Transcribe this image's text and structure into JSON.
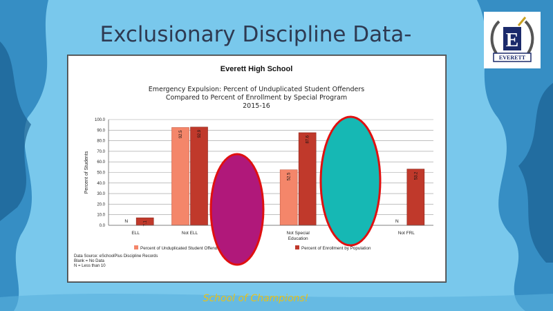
{
  "slide": {
    "title": "Exclusionary Discipline Data-",
    "footer": "School of Champions!",
    "logo_text": "EVERETT",
    "logo_letter": "E"
  },
  "colors": {
    "background": "#79c8ec",
    "wave_dark": "#1f6fa5",
    "series1": "#f4866a",
    "series2": "#c0392b",
    "oval1_fill": "#b0187a",
    "oval2_fill": "#16b8b4",
    "oval_stroke": "#e01010",
    "footer": "#e8c21a"
  },
  "chart_data": {
    "type": "bar",
    "school": "Everett High School",
    "title": [
      "Emergency Expulsion: Percent of Unduplicated Student Offenders",
      "Compared to Percent of Enrollment by Special Program",
      "2015-16"
    ],
    "ylabel": "Percent of Students",
    "ylim": [
      0,
      100
    ],
    "yticks": [
      "0.0",
      "10.0",
      "20.0",
      "30.0",
      "40.0",
      "50.0",
      "60.0",
      "70.0",
      "80.0",
      "90.0",
      "100.0"
    ],
    "categories": [
      "ELL",
      "Not ELL",
      "",
      "Not Special\nEducation",
      "",
      "Not FRL"
    ],
    "series": [
      {
        "name": "Percent of Unduplicated Student Offenders by Population",
        "values": [
          null,
          92.5,
          null,
          52.5,
          null,
          null
        ],
        "labels": [
          "N",
          "92.5",
          "",
          "52.5",
          "",
          "N"
        ]
      },
      {
        "name": "Percent of Enrollment by Population",
        "values": [
          7.1,
          92.9,
          null,
          87.6,
          null,
          53.2
        ],
        "labels": [
          "7.1",
          "92.9",
          "",
          "87.6",
          "",
          "53.2"
        ]
      }
    ],
    "notes": [
      "Data Source: eSchoolPlus Discipline Records",
      "Blank = No Data",
      "N = Less than 10"
    ]
  }
}
